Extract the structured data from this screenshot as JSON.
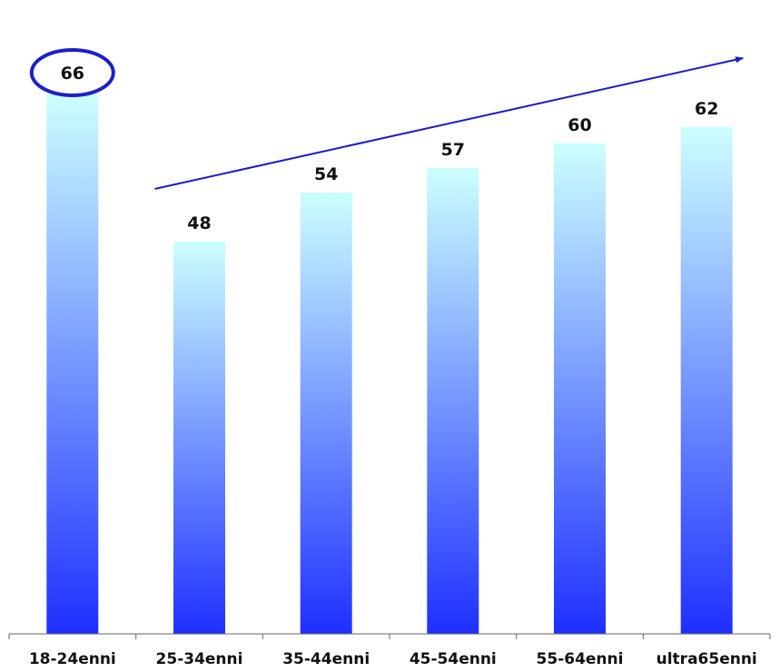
{
  "chart_data": {
    "type": "bar",
    "categories": [
      "18-24enni",
      "25-34enni",
      "35-44enni",
      "45-54enni",
      "55-64enni",
      "ultra65enni"
    ],
    "values": [
      66,
      48,
      54,
      57,
      60,
      62
    ],
    "title": "",
    "xlabel": "",
    "ylabel": "",
    "ylim": [
      0,
      70
    ],
    "grid": false,
    "legend": "none",
    "highlighted_category": "18-24enni",
    "trend_arrow": {
      "from_category": "25-34enni",
      "to_category": "ultra65enni"
    },
    "colors": {
      "bar_top": "#ccffff",
      "bar_bottom": "#1f2fff",
      "highlight_ring": "#1f1fc8",
      "trend_arrow": "#1a1acc",
      "axis": "#666666"
    }
  }
}
